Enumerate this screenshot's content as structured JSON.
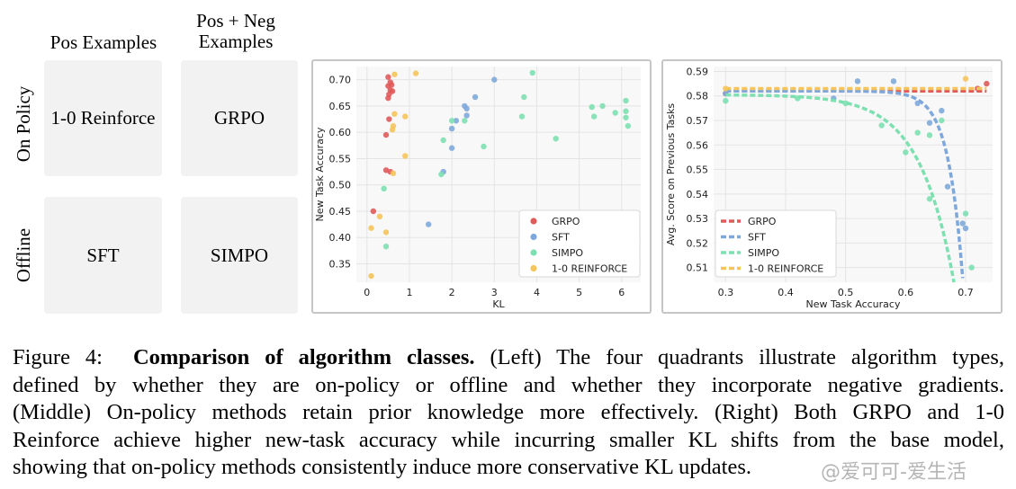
{
  "quadrants": {
    "col_headers": [
      "Pos Examples",
      "Pos + Neg\nExamples"
    ],
    "row_headers": [
      "On Policy",
      "Offline"
    ],
    "cells": [
      "1-0 Reinforce",
      "GRPO",
      "SFT",
      "SIMPO"
    ]
  },
  "chart_data": [
    {
      "type": "scatter",
      "xlabel": "KL",
      "ylabel": "New Task Accuracy",
      "xlim": [
        -0.25,
        6.45
      ],
      "ylim": [
        0.315,
        0.725
      ],
      "xticks": [
        0,
        1,
        2,
        3,
        4,
        5,
        6
      ],
      "yticks": [
        0.35,
        0.4,
        0.45,
        0.5,
        0.55,
        0.6,
        0.65,
        0.7
      ],
      "grid": true,
      "legend": "bottom-right",
      "series": [
        {
          "name": "GRPO",
          "color": "#e05a5a",
          "points": [
            [
              0.5,
              0.705
            ],
            [
              0.55,
              0.695
            ],
            [
              0.5,
              0.688
            ],
            [
              0.58,
              0.69
            ],
            [
              0.55,
              0.68
            ],
            [
              0.52,
              0.672
            ],
            [
              0.6,
              0.678
            ],
            [
              0.5,
              0.665
            ],
            [
              0.52,
              0.625
            ],
            [
              0.45,
              0.595
            ],
            [
              0.45,
              0.528
            ],
            [
              0.55,
              0.525
            ],
            [
              0.15,
              0.45
            ]
          ]
        },
        {
          "name": "SFT",
          "color": "#7ea8dc",
          "points": [
            [
              3.0,
              0.7
            ],
            [
              2.55,
              0.667
            ],
            [
              2.3,
              0.65
            ],
            [
              2.35,
              0.645
            ],
            [
              2.35,
              0.632
            ],
            [
              2.1,
              0.622
            ],
            [
              2.0,
              0.607
            ],
            [
              2.0,
              0.57
            ],
            [
              1.8,
              0.525
            ],
            [
              1.45,
              0.425
            ]
          ]
        },
        {
          "name": "SIMPO",
          "color": "#7de0b0",
          "points": [
            [
              3.9,
              0.713
            ],
            [
              3.7,
              0.667
            ],
            [
              3.65,
              0.63
            ],
            [
              2.3,
              0.622
            ],
            [
              2.0,
              0.622
            ],
            [
              1.8,
              0.585
            ],
            [
              2.75,
              0.573
            ],
            [
              4.45,
              0.588
            ],
            [
              1.75,
              0.52
            ],
            [
              0.4,
              0.493
            ],
            [
              0.45,
              0.383
            ],
            [
              5.3,
              0.648
            ],
            [
              5.35,
              0.63
            ],
            [
              5.55,
              0.65
            ],
            [
              5.85,
              0.637
            ],
            [
              6.1,
              0.66
            ],
            [
              6.1,
              0.64
            ],
            [
              6.1,
              0.628
            ],
            [
              6.15,
              0.612
            ]
          ]
        },
        {
          "name": "1-0 REINFORCE",
          "color": "#f5c45a",
          "points": [
            [
              1.15,
              0.712
            ],
            [
              0.65,
              0.71
            ],
            [
              0.65,
              0.635
            ],
            [
              0.6,
              0.605
            ],
            [
              0.62,
              0.612
            ],
            [
              0.9,
              0.63
            ],
            [
              0.9,
              0.555
            ],
            [
              0.62,
              0.522
            ],
            [
              0.3,
              0.44
            ],
            [
              0.45,
              0.41
            ],
            [
              0.1,
              0.418
            ],
            [
              0.1,
              0.327
            ]
          ]
        }
      ]
    },
    {
      "type": "line",
      "xlabel": "New Task Accuracy",
      "ylabel": "Avg. Score on Previous Tasks",
      "xlim": [
        0.28,
        0.745
      ],
      "ylim": [
        0.504,
        0.592
      ],
      "xticks": [
        0.3,
        0.4,
        0.5,
        0.6,
        0.7
      ],
      "yticks": [
        0.51,
        0.52,
        0.53,
        0.54,
        0.55,
        0.56,
        0.57,
        0.58,
        0.59
      ],
      "grid": true,
      "legend": "bottom-left",
      "series": [
        {
          "name": "GRPO",
          "color": "#e05a5a",
          "fit": {
            "a": 0.582,
            "b": 0,
            "c": 0
          },
          "points": [
            [
              0.3,
              0.581
            ],
            [
              0.72,
              0.583
            ],
            [
              0.735,
              0.585
            ]
          ]
        },
        {
          "name": "SFT",
          "color": "#7ea8dc",
          "fit": {
            "a": 0.582,
            "b": 3.2e-14,
            "c": 41
          },
          "points": [
            [
              0.3,
              0.581
            ],
            [
              0.48,
              0.579
            ],
            [
              0.52,
              0.586
            ],
            [
              0.58,
              0.586
            ],
            [
              0.62,
              0.577
            ],
            [
              0.64,
              0.569
            ],
            [
              0.66,
              0.574
            ],
            [
              0.67,
              0.543
            ],
            [
              0.695,
              0.528
            ],
            [
              0.7,
              0.526
            ]
          ]
        },
        {
          "name": "SIMPO",
          "color": "#7de0b0",
          "fit": {
            "a": 0.5805,
            "b": 5.5e-07,
            "c": 17.4
          },
          "points": [
            [
              0.3,
              0.578
            ],
            [
              0.42,
              0.579
            ],
            [
              0.5,
              0.577
            ],
            [
              0.56,
              0.568
            ],
            [
              0.62,
              0.565
            ],
            [
              0.64,
              0.564
            ],
            [
              0.66,
              0.57
            ],
            [
              0.6,
              0.557
            ],
            [
              0.64,
              0.538
            ],
            [
              0.7,
              0.532
            ],
            [
              0.71,
              0.51
            ]
          ]
        },
        {
          "name": "1-0 REINFORCE",
          "color": "#f5c45a",
          "fit": {
            "a": 0.583,
            "b": 0,
            "c": 0
          },
          "points": [
            [
              0.3,
              0.583
            ],
            [
              0.7,
              0.587
            ]
          ]
        }
      ]
    }
  ],
  "caption": {
    "line1_label": "Figure 4:",
    "line1_bold": "Comparison of algorithm classes.",
    "line1_rest": "(Left) The four quadrants illustrate algorithm types,",
    "line2": "defined by whether they are on-policy or offline and whether they incorporate negative gradients.",
    "line3": "(Middle) On-policy methods retain prior knowledge more effectively. (Right) Both GRPO and 1-0",
    "line4": "Reinforce achieve higher new-task accuracy while incurring smaller KL shifts from the base model,",
    "line5": "showing that on-policy methods consistently induce more conservative KL updates."
  },
  "watermark": "@爱可可-爱生活"
}
